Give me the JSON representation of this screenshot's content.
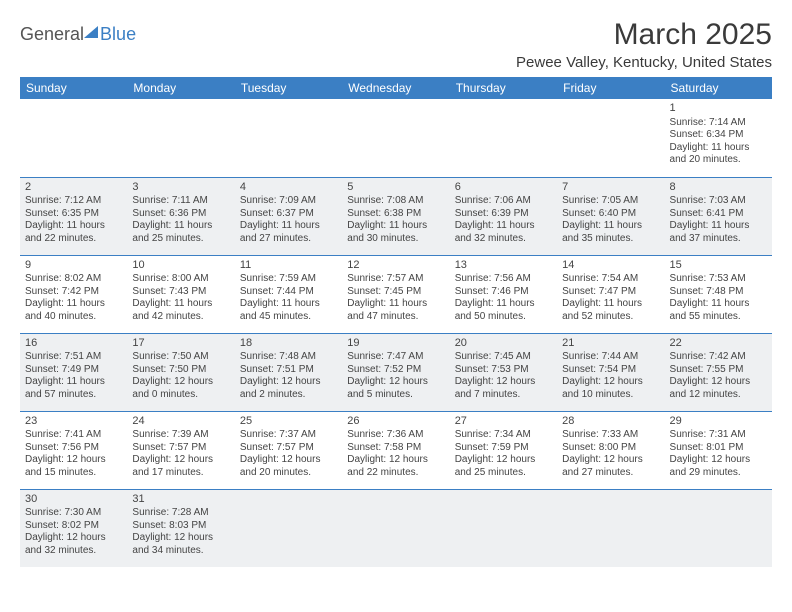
{
  "logo": {
    "part1": "General",
    "part2": "Blue"
  },
  "title": "March 2025",
  "location": "Pewee Valley, Kentucky, United States",
  "colors": {
    "header_bg": "#3b7fc4",
    "header_text": "#ffffff",
    "row_alt_bg": "#eef0f2",
    "row_bg": "#ffffff",
    "border": "#3b7fc4",
    "text": "#444444"
  },
  "typography": {
    "title_fontsize": 30,
    "location_fontsize": 15,
    "dayheader_fontsize": 12,
    "cell_fontsize": 10
  },
  "day_headers": [
    "Sunday",
    "Monday",
    "Tuesday",
    "Wednesday",
    "Thursday",
    "Friday",
    "Saturday"
  ],
  "weeks": [
    [
      null,
      null,
      null,
      null,
      null,
      null,
      {
        "n": "1",
        "sr": "7:14 AM",
        "ss": "6:34 PM",
        "dl": "11 hours and 20 minutes."
      }
    ],
    [
      {
        "n": "2",
        "sr": "7:12 AM",
        "ss": "6:35 PM",
        "dl": "11 hours and 22 minutes."
      },
      {
        "n": "3",
        "sr": "7:11 AM",
        "ss": "6:36 PM",
        "dl": "11 hours and 25 minutes."
      },
      {
        "n": "4",
        "sr": "7:09 AM",
        "ss": "6:37 PM",
        "dl": "11 hours and 27 minutes."
      },
      {
        "n": "5",
        "sr": "7:08 AM",
        "ss": "6:38 PM",
        "dl": "11 hours and 30 minutes."
      },
      {
        "n": "6",
        "sr": "7:06 AM",
        "ss": "6:39 PM",
        "dl": "11 hours and 32 minutes."
      },
      {
        "n": "7",
        "sr": "7:05 AM",
        "ss": "6:40 PM",
        "dl": "11 hours and 35 minutes."
      },
      {
        "n": "8",
        "sr": "7:03 AM",
        "ss": "6:41 PM",
        "dl": "11 hours and 37 minutes."
      }
    ],
    [
      {
        "n": "9",
        "sr": "8:02 AM",
        "ss": "7:42 PM",
        "dl": "11 hours and 40 minutes."
      },
      {
        "n": "10",
        "sr": "8:00 AM",
        "ss": "7:43 PM",
        "dl": "11 hours and 42 minutes."
      },
      {
        "n": "11",
        "sr": "7:59 AM",
        "ss": "7:44 PM",
        "dl": "11 hours and 45 minutes."
      },
      {
        "n": "12",
        "sr": "7:57 AM",
        "ss": "7:45 PM",
        "dl": "11 hours and 47 minutes."
      },
      {
        "n": "13",
        "sr": "7:56 AM",
        "ss": "7:46 PM",
        "dl": "11 hours and 50 minutes."
      },
      {
        "n": "14",
        "sr": "7:54 AM",
        "ss": "7:47 PM",
        "dl": "11 hours and 52 minutes."
      },
      {
        "n": "15",
        "sr": "7:53 AM",
        "ss": "7:48 PM",
        "dl": "11 hours and 55 minutes."
      }
    ],
    [
      {
        "n": "16",
        "sr": "7:51 AM",
        "ss": "7:49 PM",
        "dl": "11 hours and 57 minutes."
      },
      {
        "n": "17",
        "sr": "7:50 AM",
        "ss": "7:50 PM",
        "dl": "12 hours and 0 minutes."
      },
      {
        "n": "18",
        "sr": "7:48 AM",
        "ss": "7:51 PM",
        "dl": "12 hours and 2 minutes."
      },
      {
        "n": "19",
        "sr": "7:47 AM",
        "ss": "7:52 PM",
        "dl": "12 hours and 5 minutes."
      },
      {
        "n": "20",
        "sr": "7:45 AM",
        "ss": "7:53 PM",
        "dl": "12 hours and 7 minutes."
      },
      {
        "n": "21",
        "sr": "7:44 AM",
        "ss": "7:54 PM",
        "dl": "12 hours and 10 minutes."
      },
      {
        "n": "22",
        "sr": "7:42 AM",
        "ss": "7:55 PM",
        "dl": "12 hours and 12 minutes."
      }
    ],
    [
      {
        "n": "23",
        "sr": "7:41 AM",
        "ss": "7:56 PM",
        "dl": "12 hours and 15 minutes."
      },
      {
        "n": "24",
        "sr": "7:39 AM",
        "ss": "7:57 PM",
        "dl": "12 hours and 17 minutes."
      },
      {
        "n": "25",
        "sr": "7:37 AM",
        "ss": "7:57 PM",
        "dl": "12 hours and 20 minutes."
      },
      {
        "n": "26",
        "sr": "7:36 AM",
        "ss": "7:58 PM",
        "dl": "12 hours and 22 minutes."
      },
      {
        "n": "27",
        "sr": "7:34 AM",
        "ss": "7:59 PM",
        "dl": "12 hours and 25 minutes."
      },
      {
        "n": "28",
        "sr": "7:33 AM",
        "ss": "8:00 PM",
        "dl": "12 hours and 27 minutes."
      },
      {
        "n": "29",
        "sr": "7:31 AM",
        "ss": "8:01 PM",
        "dl": "12 hours and 29 minutes."
      }
    ],
    [
      {
        "n": "30",
        "sr": "7:30 AM",
        "ss": "8:02 PM",
        "dl": "12 hours and 32 minutes."
      },
      {
        "n": "31",
        "sr": "7:28 AM",
        "ss": "8:03 PM",
        "dl": "12 hours and 34 minutes."
      },
      null,
      null,
      null,
      null,
      null
    ]
  ],
  "labels": {
    "sunrise": "Sunrise: ",
    "sunset": "Sunset: ",
    "daylight": "Daylight: "
  }
}
